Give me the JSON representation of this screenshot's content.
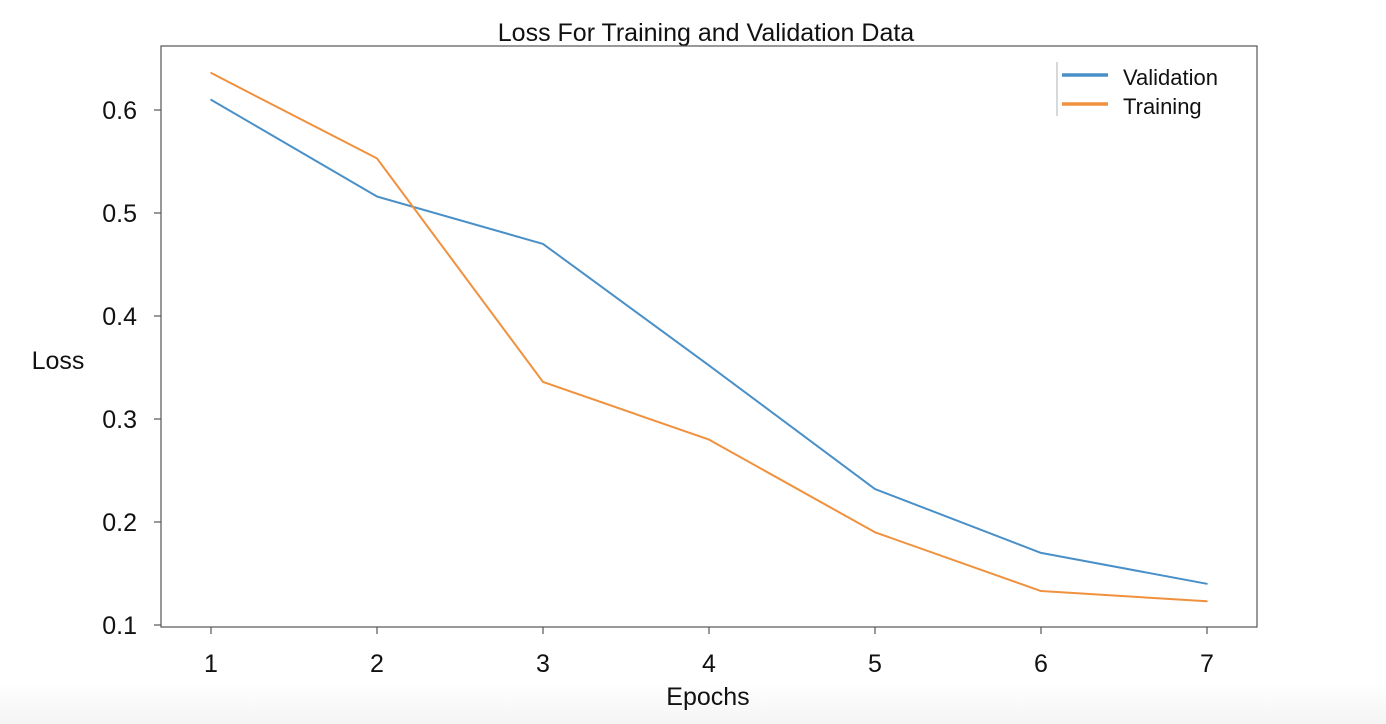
{
  "chart_data": {
    "type": "line",
    "title": "Loss For Training and Validation Data",
    "xlabel": "Epochs",
    "ylabel": "Loss",
    "x": [
      1,
      2,
      3,
      4,
      5,
      6,
      7
    ],
    "xticks": [
      "1",
      "2",
      "3",
      "4",
      "5",
      "6",
      "7"
    ],
    "yticks": [
      "0.1",
      "0.2",
      "0.3",
      "0.4",
      "0.5",
      "0.6"
    ],
    "ylim": [
      0.1,
      0.66
    ],
    "grid": false,
    "legend_position": "top-right",
    "series": [
      {
        "name": "Validation",
        "color": "#4a90c8",
        "values": [
          0.61,
          0.516,
          0.47,
          0.352,
          0.232,
          0.17,
          0.14
        ]
      },
      {
        "name": "Training",
        "color": "#f0913e",
        "values": [
          0.636,
          0.553,
          0.336,
          0.28,
          0.19,
          0.133,
          0.123
        ]
      }
    ]
  }
}
